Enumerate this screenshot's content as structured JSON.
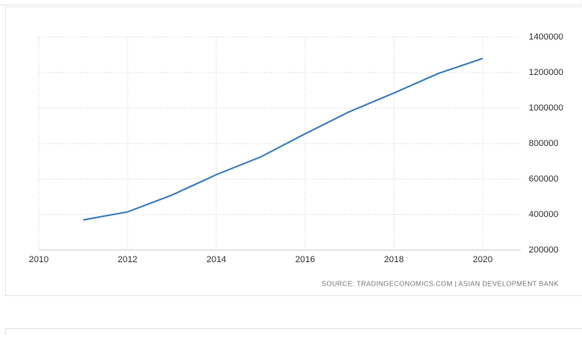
{
  "chart_data": {
    "type": "line",
    "x": [
      2011,
      2012,
      2013,
      2014,
      2015,
      2016,
      2017,
      2018,
      2019,
      2020
    ],
    "series": [
      {
        "color": "#3d7ebd",
        "values": [
          370000,
          415000,
          510000,
          625000,
          725000,
          855000,
          980000,
          1085000,
          1195000,
          1280000
        ]
      }
    ],
    "xlim": [
      2010,
      2020.8
    ],
    "xticks": [
      2010,
      2012,
      2014,
      2016,
      2018,
      2020
    ],
    "ylim": [
      200000,
      1400000
    ],
    "yticks": [
      200000,
      400000,
      600000,
      800000,
      1000000,
      1200000,
      1400000
    ],
    "grid": true,
    "source": "SOURCE: TRADINGECONOMICS.COM | ASIAN DEVELOPMENT BANK"
  }
}
